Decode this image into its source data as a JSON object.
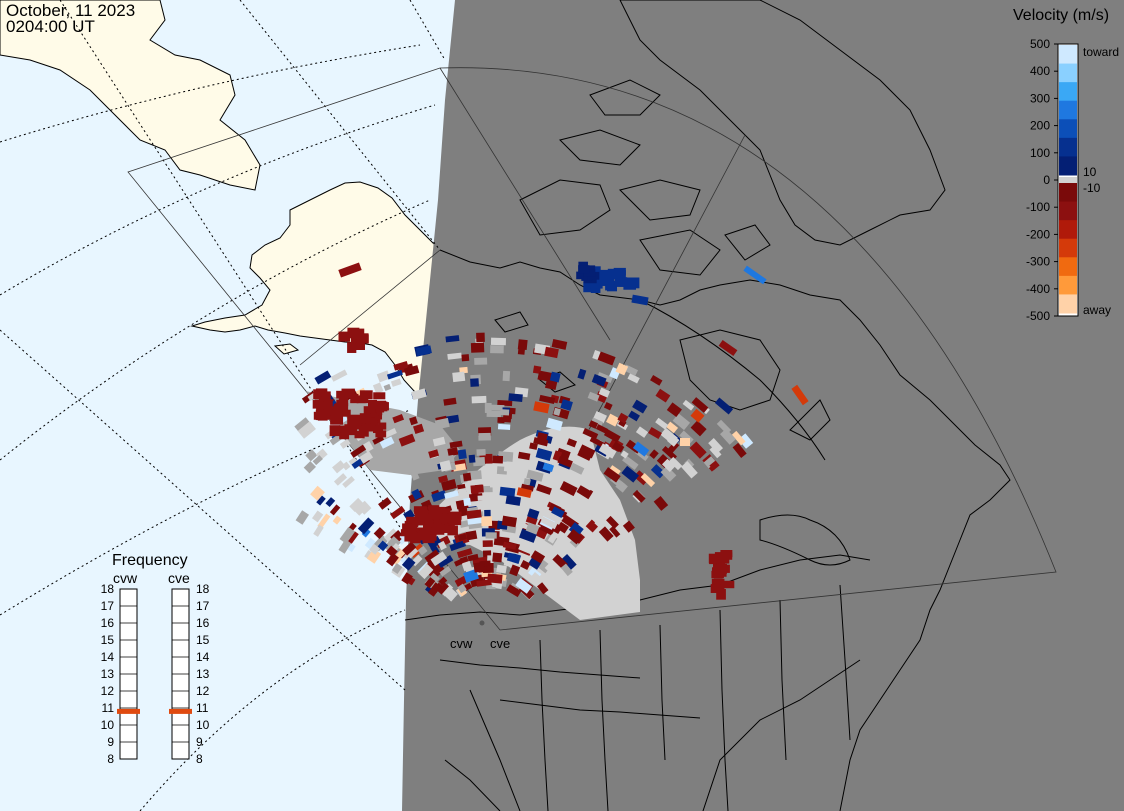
{
  "header": {
    "date": "October, 11 2023",
    "time": "0204:00 UT"
  },
  "legend": {
    "title": "Velocity (m/s)",
    "toward_label": "toward",
    "away_label": "away",
    "ticks": [
      "500",
      "400",
      "300",
      "200",
      "100",
      "0",
      "-100",
      "-200",
      "-300",
      "-400",
      "-500"
    ],
    "ten_label": "10",
    "neg_ten_label": "-10",
    "colors_toward": [
      "#cfe9ff",
      "#8ad0ff",
      "#3aa8f5",
      "#1f78e0",
      "#0c4fb8",
      "#06308f",
      "#041f74"
    ],
    "colors_away": [
      "#7a0a0a",
      "#8c1010",
      "#b01a0a",
      "#d43a0a",
      "#f06a10",
      "#ff9a3a",
      "#ffd2a8"
    ]
  },
  "frequency": {
    "title": "Frequency",
    "radars": [
      "cvw",
      "cve"
    ],
    "scale": [
      "18",
      "17",
      "16",
      "15",
      "14",
      "13",
      "12",
      "11",
      "10",
      "9",
      "8"
    ],
    "current_mhz": [
      10.8,
      10.8
    ]
  },
  "map": {
    "site_labels": [
      "cvw",
      "cve"
    ],
    "ocean_color": "#e8f6ff",
    "land_day_color": "#fffbe8",
    "night_color": "#7f7f7f",
    "scatter_color": "#d2d2d2",
    "ground_color": "#a7a7a7"
  }
}
